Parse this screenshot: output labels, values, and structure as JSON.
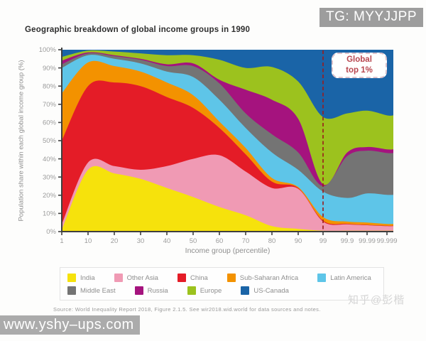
{
  "watermarks": {
    "telegram": "TG: MYYJJPP",
    "site": "www.yshy–ups.com",
    "zhihu": "知乎@彭楷"
  },
  "source": "Source: World Inequality Report 2018, Figure 2.1.5. See wir2018.wid.world for data sources and notes.",
  "chart_data": {
    "type": "area",
    "stacked": true,
    "title": "Geographic breakdown of global income groups in 1990",
    "xlabel": "Income group (percentile)",
    "ylabel": "Population share within each global income group (%)",
    "x_tick_labels": [
      "1",
      "10",
      "20",
      "30",
      "40",
      "50",
      "60",
      "70",
      "80",
      "90",
      "99",
      "99.9",
      "99.99",
      "99.999"
    ],
    "y_tick_labels": [
      "0%",
      "10%",
      "20%",
      "30%",
      "40%",
      "50%",
      "60%",
      "70%",
      "80%",
      "90%",
      "100%"
    ],
    "ylim": [
      0,
      100
    ],
    "y_unit": "percent of population in income group",
    "grid": false,
    "legend_position": "bottom",
    "annotation": {
      "line1": "Global",
      "line2": "top 1%",
      "at_x_tick": "99",
      "line_style": "dashed",
      "line_color": "#9b1b1b"
    },
    "series": [
      {
        "name": "India",
        "color": "#f6e20c",
        "values": [
          1,
          34,
          32,
          29,
          24,
          19,
          13.5,
          9,
          3,
          1.5,
          0.5,
          0.5,
          0.5,
          0.5
        ]
      },
      {
        "name": "Other Asia",
        "color": "#f09ab4",
        "values": [
          3,
          4,
          4,
          5,
          12,
          21,
          28.5,
          24,
          21,
          22,
          5,
          3.5,
          3,
          2.5
        ]
      },
      {
        "name": "China",
        "color": "#e41c27",
        "values": [
          46,
          42,
          46,
          46,
          38,
          28,
          15,
          9.5,
          3.5,
          0.5,
          0.5,
          0.3,
          0.2,
          0.2
        ]
      },
      {
        "name": "Sub-Saharan Africa",
        "color": "#f39200",
        "values": [
          26,
          13,
          9,
          8,
          8,
          7,
          3.5,
          3.5,
          2,
          0.5,
          2,
          1.2,
          1.3,
          1
        ]
      },
      {
        "name": "Latin America",
        "color": "#5ec5e8",
        "values": [
          14,
          4,
          4,
          4.5,
          6,
          10,
          12,
          11,
          14,
          9.5,
          14,
          13,
          16,
          16
        ]
      },
      {
        "name": "Middle East",
        "color": "#747474",
        "values": [
          2,
          1,
          1.5,
          2,
          3,
          6,
          9,
          8,
          10,
          9.5,
          3,
          23,
          23.5,
          23
        ]
      },
      {
        "name": "Russia",
        "color": "#a5137e",
        "values": [
          2,
          0.5,
          0.5,
          0.5,
          1,
          1.5,
          2,
          13,
          19,
          18.5,
          1,
          2,
          2,
          2
        ]
      },
      {
        "name": "Europe",
        "color": "#9cc21e",
        "values": [
          2,
          1,
          2,
          3,
          5,
          4.5,
          11,
          12,
          18,
          20.5,
          37,
          21.5,
          20,
          18.7
        ]
      },
      {
        "name": "US-Canada",
        "color": "#1a64a7",
        "values": [
          4,
          0.5,
          1,
          2,
          3,
          3,
          5.5,
          10,
          9.5,
          17.5,
          37,
          35,
          33.5,
          36.1
        ]
      }
    ]
  }
}
